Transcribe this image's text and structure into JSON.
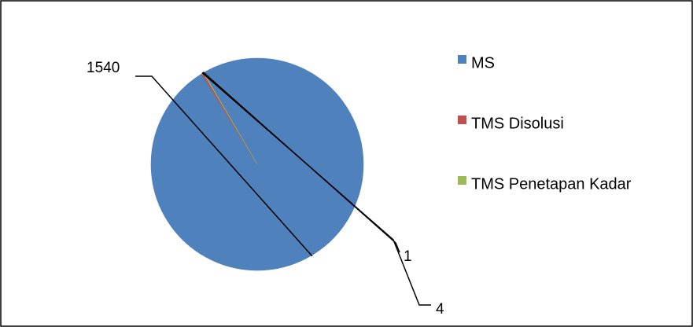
{
  "chart_data": {
    "type": "pie",
    "title": "",
    "categories": [
      "MS",
      "TMS Disolusi",
      "TMS Penetapan Kadar"
    ],
    "values": [
      1540,
      4,
      1
    ],
    "colors": [
      "#4F81BD",
      "#C0504D",
      "#9BBB59"
    ],
    "data_labels": [
      "1540",
      "4",
      "1"
    ],
    "legend_position": "right",
    "start_angle_deg": 120.3,
    "direction": "clockwise"
  }
}
